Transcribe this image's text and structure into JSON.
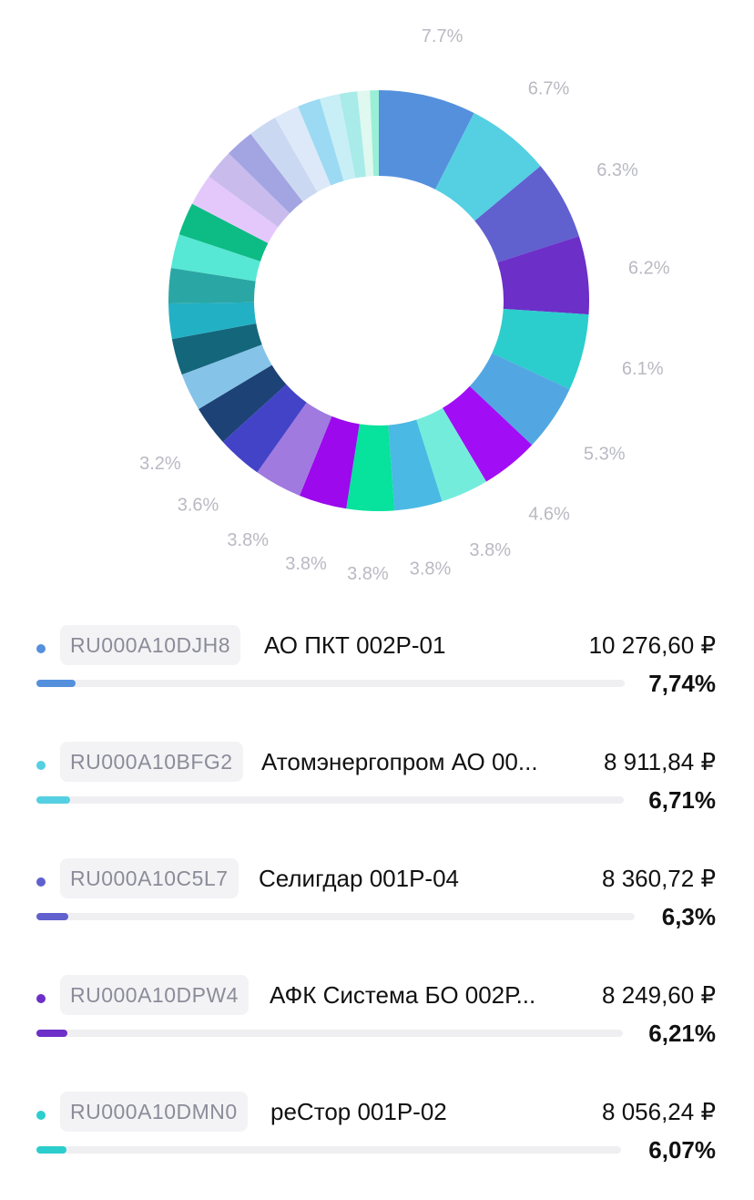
{
  "chart_data": {
    "type": "pie",
    "style": "donut",
    "slices": [
      {
        "value": 7.74,
        "color": "#5590dd"
      },
      {
        "value": 6.71,
        "color": "#55cfe2"
      },
      {
        "value": 6.3,
        "color": "#6060cf"
      },
      {
        "value": 6.21,
        "color": "#6c2fc8"
      },
      {
        "value": 6.07,
        "color": "#2ccdcd"
      },
      {
        "value": 5.3,
        "color": "#52a7e2"
      },
      {
        "value": 4.6,
        "color": "#a10ef5"
      },
      {
        "value": 3.8,
        "color": "#74ecdc"
      },
      {
        "value": 3.8,
        "color": "#4ab9e4"
      },
      {
        "value": 3.8,
        "color": "#07e29c"
      },
      {
        "value": 3.8,
        "color": "#9b09ec"
      },
      {
        "value": 3.8,
        "color": "#a07adf"
      },
      {
        "value": 3.6,
        "color": "#4343c8"
      },
      {
        "value": 3.2,
        "color": "#1c4276"
      },
      {
        "value": 3.0,
        "color": "#85c3e8"
      },
      {
        "value": 2.9,
        "color": "#14667a"
      },
      {
        "value": 2.8,
        "color": "#22b0c4"
      },
      {
        "value": 2.8,
        "color": "#2aa7a4"
      },
      {
        "value": 2.7,
        "color": "#56e8d4"
      },
      {
        "value": 2.6,
        "color": "#0dbb84"
      },
      {
        "value": 2.5,
        "color": "#e4c8fb"
      },
      {
        "value": 2.4,
        "color": "#c9bced"
      },
      {
        "value": 2.3,
        "color": "#a3a4e2"
      },
      {
        "value": 2.3,
        "color": "#cbd8f2"
      },
      {
        "value": 2.0,
        "color": "#dde9f8"
      },
      {
        "value": 1.8,
        "color": "#9bdaf2"
      },
      {
        "value": 1.6,
        "color": "#c8eef6"
      },
      {
        "value": 1.4,
        "color": "#a8ebe8"
      },
      {
        "value": 1.0,
        "color": "#dff8f0"
      },
      {
        "value": 0.7,
        "color": "#9aefd7"
      }
    ],
    "labels": [
      "7.7%",
      "6.7%",
      "6.3%",
      "6.2%",
      "6.1%",
      "5.3%",
      "4.6%",
      "3.8%",
      "3.8%",
      "3.8%",
      "3.8%",
      "3.8%",
      "3.6%",
      "3.2%"
    ]
  },
  "legend": [
    {
      "isin": "RU000A10DJH8",
      "name": "АО ПКТ 002Р-01",
      "amount": "10 276,60 ₽",
      "percent": "7,74%",
      "share": 0.0774,
      "color": "#5590dd"
    },
    {
      "isin": "RU000A10BFG2",
      "name": "Атомэнергопром АО 00...",
      "amount": "8 911,84 ₽",
      "percent": "6,71%",
      "share": 0.0671,
      "color": "#55cfe2"
    },
    {
      "isin": "RU000A10C5L7",
      "name": "Селигдар 001Р-04",
      "amount": "8 360,72 ₽",
      "percent": "6,3%",
      "share": 0.063,
      "color": "#6060cf"
    },
    {
      "isin": "RU000A10DPW4",
      "name": "АФК Система БО 002Р...",
      "amount": "8 249,60 ₽",
      "percent": "6,21%",
      "share": 0.0621,
      "color": "#6c2fc8"
    },
    {
      "isin": "RU000A10DMN0",
      "name": "реСтор 001Р-02",
      "amount": "8 056,24 ₽",
      "percent": "6,07%",
      "share": 0.0607,
      "color": "#2ccdcd"
    }
  ]
}
